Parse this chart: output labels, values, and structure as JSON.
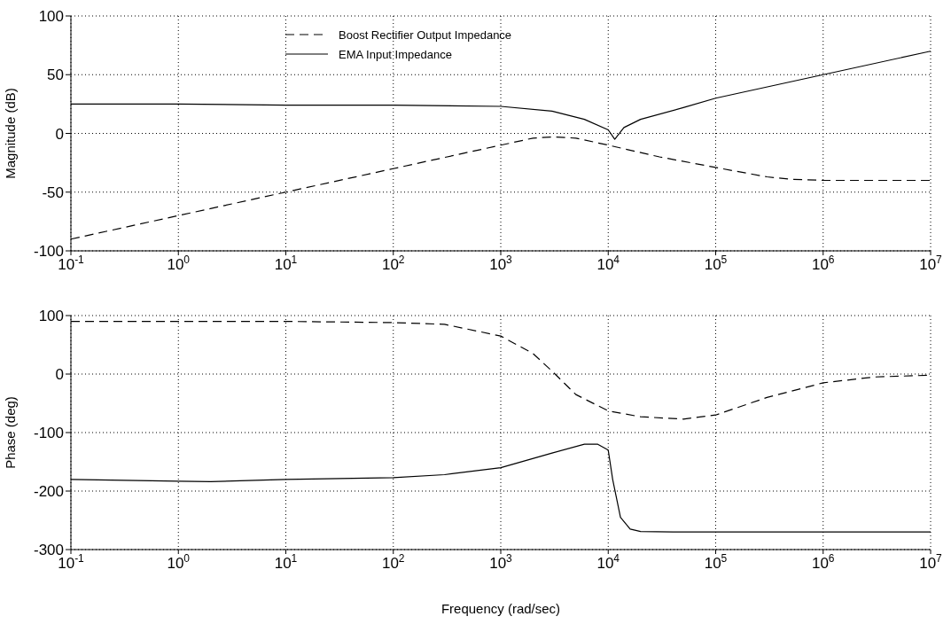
{
  "chart_data": [
    {
      "type": "line",
      "ylabel": "Magnitude (dB)",
      "log": "x",
      "grid": true,
      "legend": "top",
      "xlim": [
        0.1,
        10000000
      ],
      "ylim": [
        -100,
        100
      ],
      "yticks": [
        -100,
        -50,
        0,
        50,
        100
      ],
      "xticks": [
        {
          "value": 0.1,
          "label": "10$^{-1}$"
        },
        {
          "value": 1,
          "label": "10$^{0}$"
        },
        {
          "value": 10,
          "label": "10$^{1}$"
        },
        {
          "value": 100,
          "label": "10$^{2}$"
        },
        {
          "value": 1000,
          "label": "10$^{3}$"
        },
        {
          "value": 10000,
          "label": "10$^{4}$"
        },
        {
          "value": 100000,
          "label": "10$^{5}$"
        },
        {
          "value": 1000000,
          "label": "10$^{6}$"
        },
        {
          "value": 10000000,
          "label": "10$^{7}$"
        }
      ],
      "series": [
        {
          "name": "Boost Rectifier Output Impedance",
          "color": "#000000",
          "line_style": "dashed",
          "x": [
            0.1,
            1,
            10,
            100,
            1000,
            2000,
            3000,
            5000,
            10000,
            30000,
            100000,
            300000,
            500000,
            1000000,
            10000000
          ],
          "values": [
            -90,
            -70,
            -50,
            -30,
            -10,
            -4,
            -3,
            -4,
            -10,
            -20,
            -29,
            -37,
            -39,
            -40,
            -40
          ]
        },
        {
          "name": "EMA Input Impedance",
          "color": "#000000",
          "line_style": "solid",
          "x": [
            0.1,
            1,
            10,
            100,
            1000,
            3000,
            6000,
            10000,
            11500,
            14000,
            20000,
            50000,
            100000,
            1000000,
            10000000
          ],
          "values": [
            25,
            25,
            24,
            24,
            23,
            19,
            12,
            3,
            -5,
            5,
            12,
            22,
            30,
            50,
            70
          ]
        }
      ]
    },
    {
      "type": "line",
      "xlabel": "Frequency (rad/sec)",
      "ylabel": "Phase (deg)",
      "log": "x",
      "grid": true,
      "legend": false,
      "xlim": [
        0.1,
        10000000
      ],
      "ylim": [
        -300,
        100
      ],
      "yticks": [
        -300,
        -200,
        -100,
        0,
        100
      ],
      "xticks": [
        {
          "value": 0.1,
          "label": "10$^{-1}$"
        },
        {
          "value": 1,
          "label": "10$^{0}$"
        },
        {
          "value": 10,
          "label": "10$^{1}$"
        },
        {
          "value": 100,
          "label": "10$^{2}$"
        },
        {
          "value": 1000,
          "label": "10$^{3}$"
        },
        {
          "value": 10000,
          "label": "10$^{4}$"
        },
        {
          "value": 100000,
          "label": "10$^{5}$"
        },
        {
          "value": 1000000,
          "label": "10$^{6}$"
        },
        {
          "value": 10000000,
          "label": "10$^{7}$"
        }
      ],
      "series": [
        {
          "color": "#000000",
          "line_style": "dashed",
          "x": [
            0.1,
            10,
            100,
            300,
            1000,
            2000,
            3000,
            5000,
            10000,
            20000,
            50000,
            100000,
            300000,
            1000000,
            3000000,
            10000000
          ],
          "values": [
            90,
            90,
            88,
            85,
            65,
            35,
            5,
            -35,
            -63,
            -73,
            -77,
            -70,
            -40,
            -15,
            -5,
            -2
          ]
        },
        {
          "color": "#000000",
          "line_style": "solid",
          "x": [
            0.1,
            1,
            2,
            10,
            100,
            300,
            1000,
            3000,
            6000,
            8000,
            10000,
            11000,
            13000,
            16000,
            20000,
            40000,
            10000000
          ],
          "values": [
            -180,
            -183,
            -184,
            -180,
            -177,
            -172,
            -160,
            -135,
            -120,
            -120,
            -130,
            -180,
            -245,
            -265,
            -269,
            -270,
            -270
          ]
        }
      ]
    }
  ]
}
